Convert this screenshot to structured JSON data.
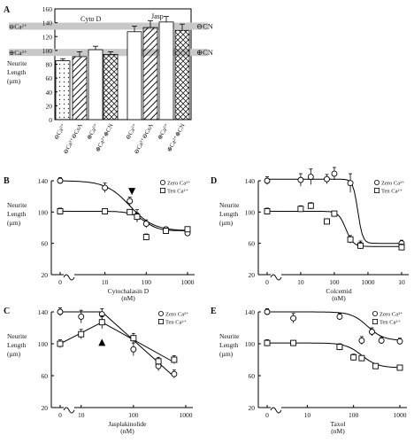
{
  "panels": [
    {
      "letter": "A"
    },
    {
      "letter": "B"
    },
    {
      "letter": "C"
    },
    {
      "letter": "D"
    },
    {
      "letter": "E"
    }
  ],
  "chart_data": [
    {
      "id": "A",
      "type": "bar",
      "ylabel": "Neurite Length (µm)",
      "ylim": [
        0,
        160
      ],
      "yticks": [
        0,
        20,
        40,
        60,
        80,
        100,
        120,
        140,
        160
      ],
      "group_labels": [
        "Cyto D",
        "Jasp"
      ],
      "reference_lines": [
        {
          "label": "⊖Ca²⁺",
          "value": 135
        },
        {
          "label": "⊕Ca²⁺",
          "value": 97
        }
      ],
      "right_labels": [
        {
          "label": "⊖CN",
          "value": 135
        },
        {
          "label": "⊕CN",
          "value": 97
        }
      ],
      "categories": [
        "⊖Ca²⁺",
        "⊖Ca²⁺⊖CsA",
        "⊕Ca²⁺",
        "⊕Ca²⁺⊕CN",
        "⊖Ca²⁺",
        "⊖Ca²⁺⊖CsA",
        "⊕Ca²⁺",
        "⊕Ca²⁺⊕CN"
      ],
      "values": [
        85,
        91,
        101,
        94,
        127,
        133,
        141,
        129
      ],
      "errors": [
        3,
        7,
        5,
        4,
        8,
        10,
        8,
        9
      ],
      "patterns": [
        "dots",
        "hatch",
        "plain",
        "cross",
        "plain",
        "hatch",
        "plain",
        "cross"
      ]
    },
    {
      "id": "B",
      "type": "line",
      "xlabel": "Cytochalasin D\n(nM)",
      "ylabel": "Neurite\nLength\n(µm)",
      "xscale": "log",
      "xlim": [
        0,
        1000
      ],
      "xticks": [
        "0",
        "10",
        "100",
        "1000"
      ],
      "ylim": [
        20,
        140
      ],
      "yticks": [
        20,
        60,
        100,
        140
      ],
      "legend": "top-right",
      "arrow_at": 45,
      "series": [
        {
          "name": "Zero Ca²⁺",
          "marker": "circle",
          "x": [
            1,
            10,
            40,
            60,
            100,
            300,
            1000
          ],
          "y": [
            140,
            131,
            114,
            95,
            85,
            78,
            73
          ],
          "err": [
            4,
            6,
            5,
            8,
            5,
            3,
            3
          ],
          "fit": {
            "top": 140,
            "bottom": 76,
            "ic50": 40,
            "hill": 1.5
          }
        },
        {
          "name": "Ten Ca²⁺",
          "marker": "square",
          "x": [
            1,
            10,
            40,
            60,
            100,
            300,
            1000
          ],
          "y": [
            101,
            101,
            100,
            94,
            68,
            76,
            78
          ],
          "err": [
            4,
            3,
            3,
            5,
            4,
            3,
            3
          ],
          "fit": {
            "top": 101,
            "bottom": 76,
            "ic50": 90,
            "hill": 2.5
          }
        }
      ]
    },
    {
      "id": "C",
      "type": "line",
      "xlabel": "Jasplakinolide\n(nM)",
      "ylabel": "Neurite\nLength\n(µm)",
      "xscale": "log",
      "xlim": [
        0,
        1000
      ],
      "xticks": [
        "0",
        "10",
        "100",
        "1000"
      ],
      "ylim": [
        20,
        140
      ],
      "yticks": [
        20,
        60,
        100,
        140
      ],
      "legend": "top-right",
      "arrow_at": 25,
      "series": [
        {
          "name": "Zero Ca²⁺",
          "marker": "circle",
          "x": [
            1,
            10,
            25,
            100,
            300,
            600
          ],
          "y": [
            140,
            134,
            137,
            93,
            72,
            62
          ],
          "err": [
            5,
            8,
            7,
            8,
            6,
            5
          ],
          "fit": {
            "peak": 25,
            "peak_y": 140
          }
        },
        {
          "name": "Ten Ca²⁺",
          "marker": "square",
          "x": [
            1,
            10,
            25,
            100,
            300,
            600
          ],
          "y": [
            100,
            112,
            127,
            107,
            78,
            80
          ],
          "err": [
            5,
            6,
            8,
            6,
            5,
            5
          ],
          "fit": {
            "peak": 25,
            "peak_y": 127
          }
        }
      ]
    },
    {
      "id": "D",
      "type": "line",
      "xlabel": "Colcemid\n(nM)",
      "ylabel": "Neurite\nLength\n(µm)",
      "xscale": "log",
      "xlim": [
        0,
        10000
      ],
      "xticks": [
        "0",
        "10",
        "100",
        "1000",
        "10"
      ],
      "ylim": [
        20,
        140
      ],
      "yticks": [
        20,
        60,
        100,
        140
      ],
      "legend": "top-right",
      "series": [
        {
          "name": "Zero Ca²⁺",
          "marker": "circle",
          "x": [
            1,
            10,
            20,
            60,
            100,
            300,
            600,
            10000
          ],
          "y": [
            140,
            141,
            145,
            142,
            149,
            137,
            58,
            60
          ],
          "err": [
            5,
            8,
            10,
            6,
            8,
            12,
            5,
            4
          ],
          "fit": {
            "top": 142,
            "bottom": 60,
            "ic50": 500,
            "hill": 6
          }
        },
        {
          "name": "Ten Ca²⁺",
          "marker": "square",
          "x": [
            1,
            10,
            20,
            60,
            100,
            300,
            600,
            10000
          ],
          "y": [
            101,
            104,
            108,
            88,
            98,
            65,
            57,
            55
          ],
          "err": [
            4,
            4,
            4,
            3,
            3,
            5,
            4,
            4
          ],
          "fit": {
            "top": 101,
            "bottom": 56,
            "ic50": 220,
            "hill": 4
          }
        }
      ]
    },
    {
      "id": "E",
      "type": "line",
      "xlabel": "Taxol\n(nM)",
      "ylabel": "Neurite\nLength\n(µm)",
      "xscale": "log",
      "xlim": [
        0,
        1000
      ],
      "xticks": [
        "0",
        "10",
        "100",
        "1000"
      ],
      "ylim": [
        20,
        140
      ],
      "yticks": [
        20,
        60,
        100,
        140
      ],
      "legend": "top-right",
      "series": [
        {
          "name": "Zero Ca²⁺",
          "marker": "circle",
          "x": [
            1,
            5,
            50,
            150,
            250,
            400,
            1000
          ],
          "y": [
            140,
            132,
            134,
            104,
            115,
            104,
            103
          ],
          "err": [
            4,
            6,
            4,
            5,
            5,
            4,
            4
          ],
          "fit": {
            "top": 140,
            "bottom": 104,
            "ic50": 200,
            "hill": 2.5
          }
        },
        {
          "name": "Ten Ca²⁺",
          "marker": "square",
          "x": [
            1,
            5,
            50,
            100,
            150,
            300,
            1000
          ],
          "y": [
            101,
            101,
            96,
            83,
            82,
            72,
            70
          ],
          "err": [
            4,
            3,
            4,
            4,
            3,
            3,
            3
          ],
          "fit": {
            "top": 101,
            "bottom": 70,
            "ic50": 150,
            "hill": 2.5
          }
        }
      ]
    }
  ]
}
